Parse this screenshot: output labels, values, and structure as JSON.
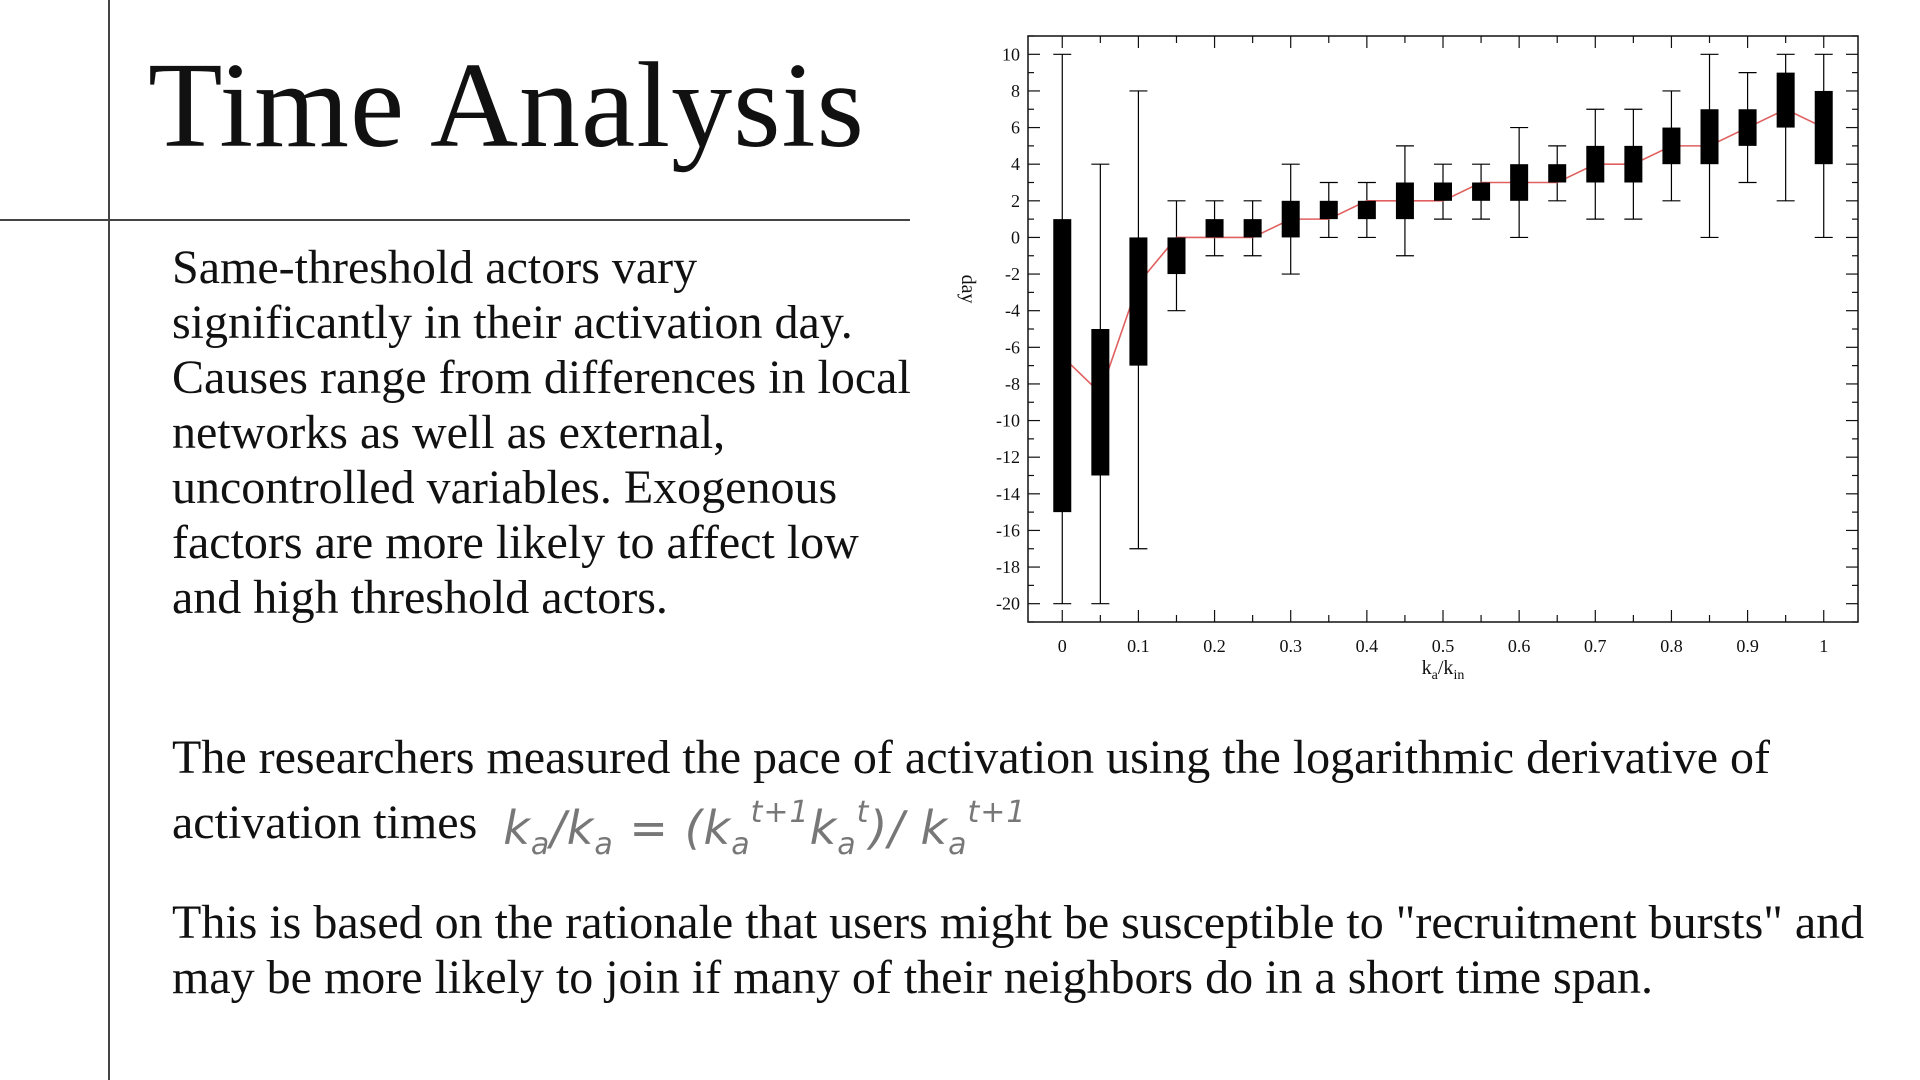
{
  "slide": {
    "title": "Time Analysis",
    "paragraph1": "Same-threshold actors vary significantly in their activation day. Causes range from differences in local networks as well as external, uncontrolled variables. Exogenous factors are more likely to affect low and high threshold actors.",
    "paragraph2_text": "The researchers measured the pace of activation using the logarithmic derivative of activation times",
    "formula": {
      "k1": "k",
      "s1": "a",
      "slash": "/",
      "k2": "k",
      "s2": "a",
      "eq": " = (",
      "k3": "k",
      "s3": "a",
      "p3": "t+1",
      "k4": "k",
      "s4": "a",
      "p4": "t",
      "close": ")/ ",
      "k5": "k",
      "s5": "a",
      "p5": "t+1"
    },
    "paragraph3": "This is based on the rationale that users might be susceptible to \"recruitment bursts\" and may be more likely to join if many of their neighbors do in a short time span."
  },
  "chart_data": {
    "type": "box",
    "xlabel_main": "k",
    "xlabel_sub1": "a",
    "xlabel_slash": "/k",
    "xlabel_sub2": "in",
    "ylabel": "day",
    "xlim": [
      -0.045,
      1.045
    ],
    "ylim": [
      -21,
      11
    ],
    "x_ticks": [
      "0",
      "0.1",
      "0.2",
      "0.3",
      "0.4",
      "0.5",
      "0.6",
      "0.7",
      "0.8",
      "0.9",
      "1"
    ],
    "y_ticks": [
      "10",
      "8",
      "6",
      "4",
      "2",
      "0",
      "-2",
      "-4",
      "-6",
      "-8",
      "-10",
      "-12",
      "-14",
      "-16",
      "-18",
      "-20"
    ],
    "boxes": [
      {
        "x": 0.0,
        "min": -20,
        "q1": -15,
        "q3": 1,
        "max": 10,
        "median": -6.5
      },
      {
        "x": 0.05,
        "min": -20,
        "q1": -13,
        "q3": -5,
        "max": 4,
        "median": -8.5
      },
      {
        "x": 0.1,
        "min": -17,
        "q1": -7,
        "q3": 0,
        "max": 8,
        "median": -2.5
      },
      {
        "x": 0.15,
        "min": -4,
        "q1": -2,
        "q3": 0,
        "max": 2,
        "median": 0
      },
      {
        "x": 0.2,
        "min": -1,
        "q1": 0,
        "q3": 1,
        "max": 2,
        "median": 0
      },
      {
        "x": 0.25,
        "min": -1,
        "q1": 0,
        "q3": 1,
        "max": 2,
        "median": 0
      },
      {
        "x": 0.3,
        "min": -2,
        "q1": 0,
        "q3": 2,
        "max": 4,
        "median": 1
      },
      {
        "x": 0.35,
        "min": 0,
        "q1": 1,
        "q3": 2,
        "max": 3,
        "median": 1
      },
      {
        "x": 0.4,
        "min": 0,
        "q1": 1,
        "q3": 2,
        "max": 3,
        "median": 2
      },
      {
        "x": 0.45,
        "min": -1,
        "q1": 1,
        "q3": 3,
        "max": 5,
        "median": 2
      },
      {
        "x": 0.5,
        "min": 1,
        "q1": 2,
        "q3": 3,
        "max": 4,
        "median": 2
      },
      {
        "x": 0.55,
        "min": 1,
        "q1": 2,
        "q3": 3,
        "max": 4,
        "median": 3
      },
      {
        "x": 0.6,
        "min": 0,
        "q1": 2,
        "q3": 4,
        "max": 6,
        "median": 3
      },
      {
        "x": 0.65,
        "min": 2,
        "q1": 3,
        "q3": 4,
        "max": 5,
        "median": 3
      },
      {
        "x": 0.7,
        "min": 1,
        "q1": 3,
        "q3": 5,
        "max": 7,
        "median": 4
      },
      {
        "x": 0.75,
        "min": 1,
        "q1": 3,
        "q3": 5,
        "max": 7,
        "median": 4
      },
      {
        "x": 0.8,
        "min": 2,
        "q1": 4,
        "q3": 6,
        "max": 8,
        "median": 5
      },
      {
        "x": 0.85,
        "min": 0,
        "q1": 4,
        "q3": 7,
        "max": 10,
        "median": 5
      },
      {
        "x": 0.9,
        "min": 3,
        "q1": 5,
        "q3": 7,
        "max": 9,
        "median": 6
      },
      {
        "x": 0.95,
        "min": 2,
        "q1": 6,
        "q3": 9,
        "max": 10,
        "median": 7
      },
      {
        "x": 1.0,
        "min": 0,
        "q1": 4,
        "q3": 8,
        "max": 10,
        "median": 6
      }
    ],
    "colors": {
      "box": "#000000",
      "median_line": "#e06060",
      "axis": "#111111"
    }
  }
}
